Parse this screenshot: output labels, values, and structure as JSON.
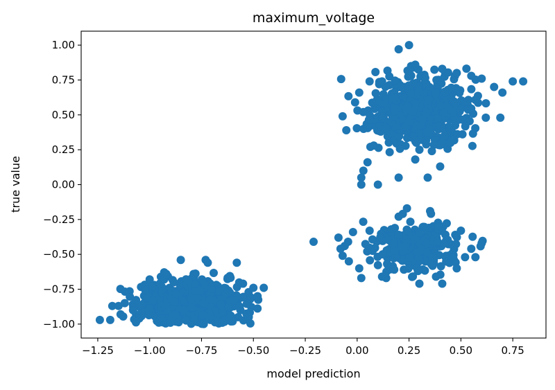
{
  "chart_data": {
    "type": "scatter",
    "title": "maximum_voltage",
    "xlabel": "model prediction",
    "ylabel": "true value",
    "xlim": [
      -1.33,
      0.91
    ],
    "ylim": [
      -1.1,
      1.1
    ],
    "xticks": [
      -1.25,
      -1.0,
      -0.75,
      -0.5,
      -0.25,
      0.0,
      0.25,
      0.5,
      0.75
    ],
    "xtick_labels": [
      "−1.25",
      "−1.00",
      "−0.75",
      "−0.50",
      "−0.25",
      "0.00",
      "0.25",
      "0.50",
      "0.75"
    ],
    "yticks": [
      -1.0,
      -0.75,
      -0.5,
      -0.25,
      0.0,
      0.25,
      0.5,
      0.75,
      1.0
    ],
    "ytick_labels": [
      "−1.00",
      "−0.75",
      "−0.50",
      "−0.25",
      "0.00",
      "0.25",
      "0.50",
      "0.75",
      "1.00"
    ],
    "grid": false,
    "marker_color": "#1f77b4",
    "clusters": [
      {
        "center": [
          -0.8,
          -0.85
        ],
        "spread": [
          0.12,
          0.08
        ],
        "count": 650,
        "ylim": [
          -1.0,
          -0.54
        ]
      },
      {
        "center": [
          0.3,
          0.53
        ],
        "spread": [
          0.11,
          0.11
        ],
        "count": 750,
        "ylim": [
          0.15,
          0.84
        ]
      },
      {
        "center": [
          0.28,
          -0.45
        ],
        "spread": [
          0.1,
          0.08
        ],
        "count": 300,
        "ylim": [
          -0.72,
          -0.18
        ]
      }
    ],
    "points": [
      {
        "x": -1.24,
        "y": -0.97
      },
      {
        "x": -1.19,
        "y": -0.97
      },
      {
        "x": -1.18,
        "y": -0.87
      },
      {
        "x": -1.15,
        "y": -0.87
      },
      {
        "x": -1.14,
        "y": -0.93
      },
      {
        "x": -1.12,
        "y": -0.85
      },
      {
        "x": -1.08,
        "y": -0.9
      },
      {
        "x": -1.05,
        "y": -0.96
      },
      {
        "x": -1.02,
        "y": -0.76
      },
      {
        "x": -1.0,
        "y": -0.68
      },
      {
        "x": -0.93,
        "y": -0.68
      },
      {
        "x": -0.92,
        "y": -0.64
      },
      {
        "x": -0.85,
        "y": -0.54
      },
      {
        "x": -0.73,
        "y": -0.54
      },
      {
        "x": -0.72,
        "y": -0.56
      },
      {
        "x": -0.58,
        "y": -0.56
      },
      {
        "x": -0.55,
        "y": -0.71
      },
      {
        "x": -0.5,
        "y": -0.74
      },
      {
        "x": -0.45,
        "y": -0.74
      },
      {
        "x": -0.48,
        "y": -0.8
      },
      {
        "x": -0.6,
        "y": -0.98
      },
      {
        "x": -0.65,
        "y": -0.99
      },
      {
        "x": -0.9,
        "y": -0.99
      },
      {
        "x": 0.2,
        "y": 0.97
      },
      {
        "x": 0.25,
        "y": 1.0
      },
      {
        "x": 0.26,
        "y": 0.85
      },
      {
        "x": 0.28,
        "y": 0.86
      },
      {
        "x": 0.12,
        "y": 0.74
      },
      {
        "x": 0.06,
        "y": 0.74
      },
      {
        "x": 0.01,
        "y": 0.66
      },
      {
        "x": -0.01,
        "y": 0.59
      },
      {
        "x": -0.07,
        "y": 0.49
      },
      {
        "x": 0.03,
        "y": 0.52
      },
      {
        "x": 0.05,
        "y": 0.41
      },
      {
        "x": 0.08,
        "y": 0.28
      },
      {
        "x": 0.05,
        "y": 0.16
      },
      {
        "x": 0.03,
        "y": 0.1
      },
      {
        "x": 0.02,
        "y": 0.05
      },
      {
        "x": 0.02,
        "y": -0.0
      },
      {
        "x": 0.1,
        "y": -0.0
      },
      {
        "x": 0.2,
        "y": 0.05
      },
      {
        "x": 0.34,
        "y": 0.05
      },
      {
        "x": 0.4,
        "y": 0.13
      },
      {
        "x": 0.36,
        "y": 0.24
      },
      {
        "x": 0.62,
        "y": 0.48
      },
      {
        "x": 0.69,
        "y": 0.48
      },
      {
        "x": 0.7,
        "y": 0.66
      },
      {
        "x": 0.75,
        "y": 0.74
      },
      {
        "x": 0.8,
        "y": 0.74
      },
      {
        "x": 0.66,
        "y": 0.7
      },
      {
        "x": 0.6,
        "y": 0.76
      },
      {
        "x": 0.55,
        "y": 0.78
      },
      {
        "x": 0.48,
        "y": 0.8
      },
      {
        "x": 0.41,
        "y": 0.83
      },
      {
        "x": 0.45,
        "y": 0.3
      },
      {
        "x": 0.3,
        "y": 0.25
      },
      {
        "x": 0.28,
        "y": 0.18
      },
      {
        "x": -0.21,
        "y": -0.41
      },
      {
        "x": -0.09,
        "y": -0.38
      },
      {
        "x": -0.08,
        "y": -0.46
      },
      {
        "x": -0.07,
        "y": -0.51
      },
      {
        "x": -0.06,
        "y": -0.44
      },
      {
        "x": -0.04,
        "y": -0.55
      },
      {
        "x": -0.02,
        "y": -0.34
      },
      {
        "x": 0.01,
        "y": -0.6
      },
      {
        "x": 0.02,
        "y": -0.67
      },
      {
        "x": 0.06,
        "y": -0.33
      },
      {
        "x": 0.12,
        "y": -0.66
      },
      {
        "x": 0.14,
        "y": -0.67
      },
      {
        "x": 0.2,
        "y": -0.23
      },
      {
        "x": 0.24,
        "y": -0.17
      },
      {
        "x": 0.22,
        "y": -0.21
      },
      {
        "x": 0.3,
        "y": -0.71
      },
      {
        "x": 0.41,
        "y": -0.71
      },
      {
        "x": 0.38,
        "y": -0.66
      },
      {
        "x": 0.48,
        "y": -0.6
      },
      {
        "x": 0.52,
        "y": -0.52
      },
      {
        "x": 0.57,
        "y": -0.52
      },
      {
        "x": 0.55,
        "y": -0.46
      },
      {
        "x": 0.6,
        "y": -0.42
      },
      {
        "x": 0.5,
        "y": -0.33
      }
    ]
  }
}
